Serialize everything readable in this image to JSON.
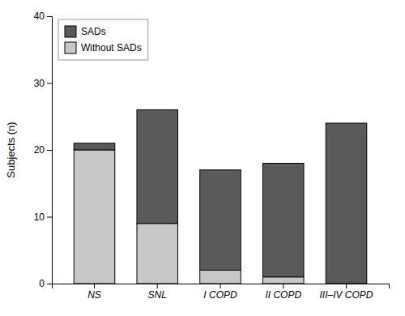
{
  "chart_data": {
    "type": "bar",
    "stacked": true,
    "categories": [
      "NS",
      "SNL",
      "I COPD",
      "II COPD",
      "III–IV COPD"
    ],
    "series": [
      {
        "name": "Without SADs",
        "color": "#c8c8c8",
        "values": [
          20,
          9,
          2,
          1,
          0
        ]
      },
      {
        "name": "SADs",
        "color": "#5a5a5a",
        "values": [
          1,
          17,
          15,
          17,
          24
        ]
      }
    ],
    "ylabel": "Subjects (n)",
    "ylim": [
      0,
      40
    ],
    "yticks": [
      0,
      10,
      20,
      30,
      40
    ],
    "grid": false,
    "legend": "upper left"
  }
}
